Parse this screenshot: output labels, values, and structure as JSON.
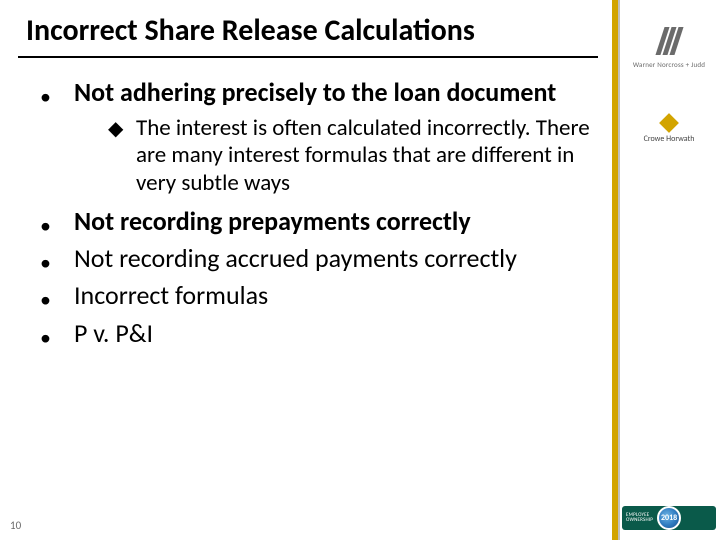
{
  "slide": {
    "title": "Incorrect Share Release Calculations",
    "page_number": "10",
    "colors": {
      "text": "#000000",
      "rule": "#000000",
      "gold_accent": "#d2a400",
      "sidebar_border": "#bfbfbf",
      "muted": "#6b6b6b",
      "conf_badge_bg": "#0a5a4a",
      "year_circle_border": "#ffffff"
    },
    "bullets": [
      {
        "text": "Not adhering precisely to the loan document",
        "bold": true,
        "sub": [
          "The interest is often calculated incorrectly. There are many interest formulas that are different in very subtle ways"
        ]
      },
      {
        "text": "Not recording prepayments correctly",
        "bold": true
      },
      {
        "text": "Not recording accrued payments correctly",
        "bold": false
      },
      {
        "text": "Incorrect formulas",
        "bold": false
      },
      {
        "text": "P v. P&I",
        "bold": false
      }
    ]
  },
  "sidebar": {
    "logo1": {
      "name": "Warner Norcross + Judd"
    },
    "logo2": {
      "name": "Crowe Horwath"
    },
    "conference": {
      "label": "EMPLOYEE\nOWNERSHIP",
      "year": "2018"
    }
  }
}
